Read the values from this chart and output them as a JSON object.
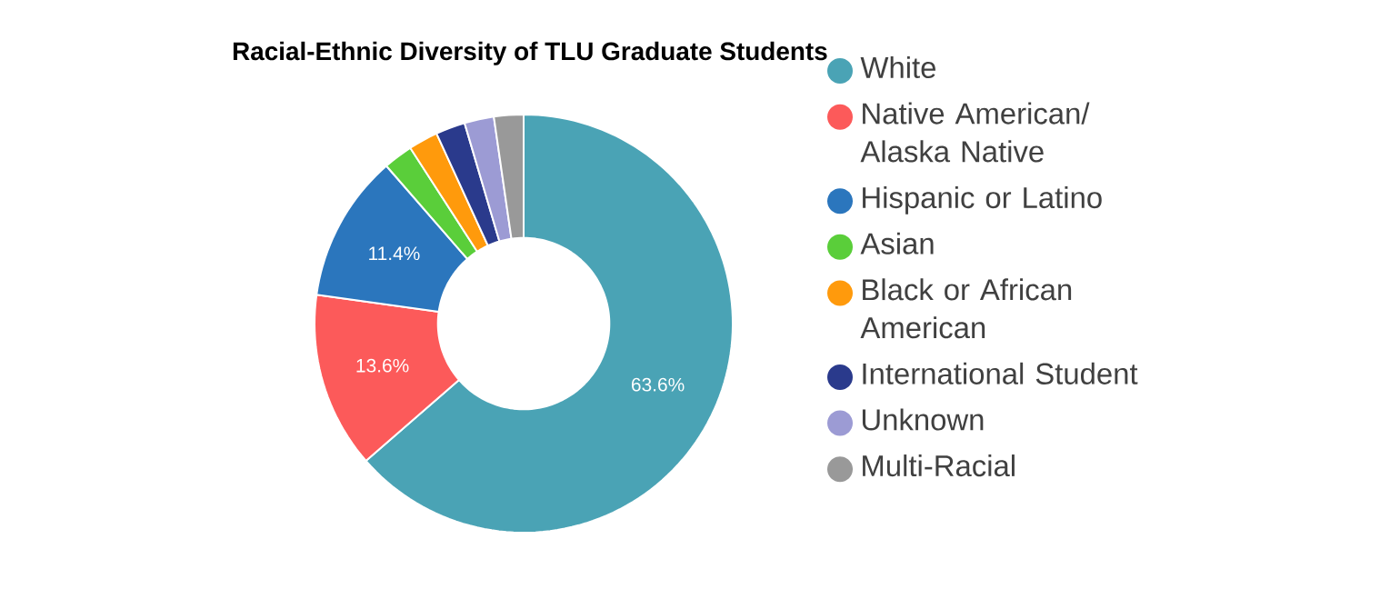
{
  "chart_data": {
    "type": "donut",
    "title": "Racial-Ethnic Diversity of TLU Graduate Students",
    "categories": [
      "White",
      "Native American/ Alaska Native",
      "Hispanic or Latino",
      "Asian",
      "Black or African American",
      "International Student",
      "Unknown",
      "Multi-Racial"
    ],
    "values": [
      63.6,
      13.6,
      11.4,
      2.28,
      2.28,
      2.28,
      2.28,
      2.28
    ],
    "colors": [
      "#4aa3b5",
      "#fc5a5a",
      "#2b76bd",
      "#5ace3a",
      "#ff9a0c",
      "#2a3a8c",
      "#9c9bd4",
      "#999999"
    ],
    "value_labels": [
      "63.6%",
      "13.6%",
      "11.4%",
      null,
      null,
      null,
      null,
      null
    ],
    "legend": "right"
  }
}
